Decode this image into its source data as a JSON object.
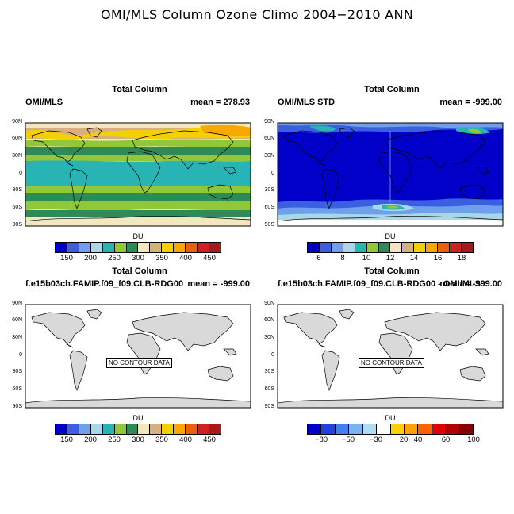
{
  "main_title": "OMI/MLS Column Ozone Climo 2004−2010 ANN",
  "panels": [
    {
      "title": "Total Column",
      "left_label": "OMI/MLS",
      "right_label": "mean = 278.93",
      "units": "DU",
      "lat_labels": [
        "90N",
        "60N",
        "30N",
        "0",
        "30S",
        "60S",
        "90S"
      ],
      "colorbar": {
        "colors": [
          "#0000c8",
          "#3a5fe0",
          "#6fa0ec",
          "#a8d8e8",
          "#28b4b4",
          "#90c838",
          "#2e8b57",
          "#f5e6c0",
          "#d8b080",
          "#f4d000",
          "#f8a800",
          "#e86010",
          "#d02020",
          "#a81818"
        ],
        "tick_labels": [
          "150",
          "200",
          "250",
          "300",
          "350",
          "400",
          "450"
        ]
      },
      "no_contour_text": null
    },
    {
      "title": "Total Column",
      "left_label": "OMI/MLS STD",
      "right_label": "mean = -999.00",
      "units": "DU",
      "lat_labels": [
        "90N",
        "60N",
        "30N",
        "0",
        "30S",
        "60S",
        "90S"
      ],
      "colorbar": {
        "colors": [
          "#0000c8",
          "#3a5fe0",
          "#6fa0ec",
          "#a8d8e8",
          "#28b4b4",
          "#90c838",
          "#2e8b57",
          "#f5e6c0",
          "#d8b080",
          "#f4d000",
          "#f8a800",
          "#e86010",
          "#d02020",
          "#a81818"
        ],
        "tick_labels": [
          "6",
          "8",
          "10",
          "12",
          "14",
          "16",
          "18"
        ]
      },
      "no_contour_text": null
    },
    {
      "title": "Total Column",
      "left_label": "f.e15b03ch.FAMIP.f09_f09.CLB-RDG00",
      "right_label": "mean = -999.00",
      "units": "DU",
      "lat_labels": [
        "90N",
        "60N",
        "30N",
        "0",
        "30S",
        "60S",
        "90S"
      ],
      "colorbar": {
        "colors": [
          "#0000c8",
          "#3a5fe0",
          "#6fa0ec",
          "#a8d8e8",
          "#28b4b4",
          "#90c838",
          "#2e8b57",
          "#f5e6c0",
          "#d8b080",
          "#f4d000",
          "#f8a800",
          "#e86010",
          "#d02020",
          "#a81818"
        ],
        "tick_labels": [
          "150",
          "200",
          "250",
          "300",
          "350",
          "400",
          "450"
        ]
      },
      "no_contour_text": "NO CONTOUR DATA"
    },
    {
      "title": "Total Column",
      "left_label": "f.e15b03ch.FAMIP.f09_f09.CLB-RDG00 - OMI/MLS",
      "right_label": "mean = -999.00",
      "units": "DU",
      "lat_labels": [
        "90N",
        "60N",
        "30N",
        "0",
        "30S",
        "60S",
        "90S"
      ],
      "colorbar": {
        "colors": [
          "#0000c8",
          "#2040e0",
          "#4080f0",
          "#78b4f0",
          "#b0dcf8",
          "#ffffff",
          "#ffd000",
          "#ffa000",
          "#ff6000",
          "#e00000",
          "#b00000",
          "#880000"
        ],
        "tick_labels": [
          "−80",
          "−50",
          "−30",
          "20",
          "40",
          "60",
          "100"
        ]
      },
      "no_contour_text": "NO CONTOUR DATA"
    }
  ]
}
